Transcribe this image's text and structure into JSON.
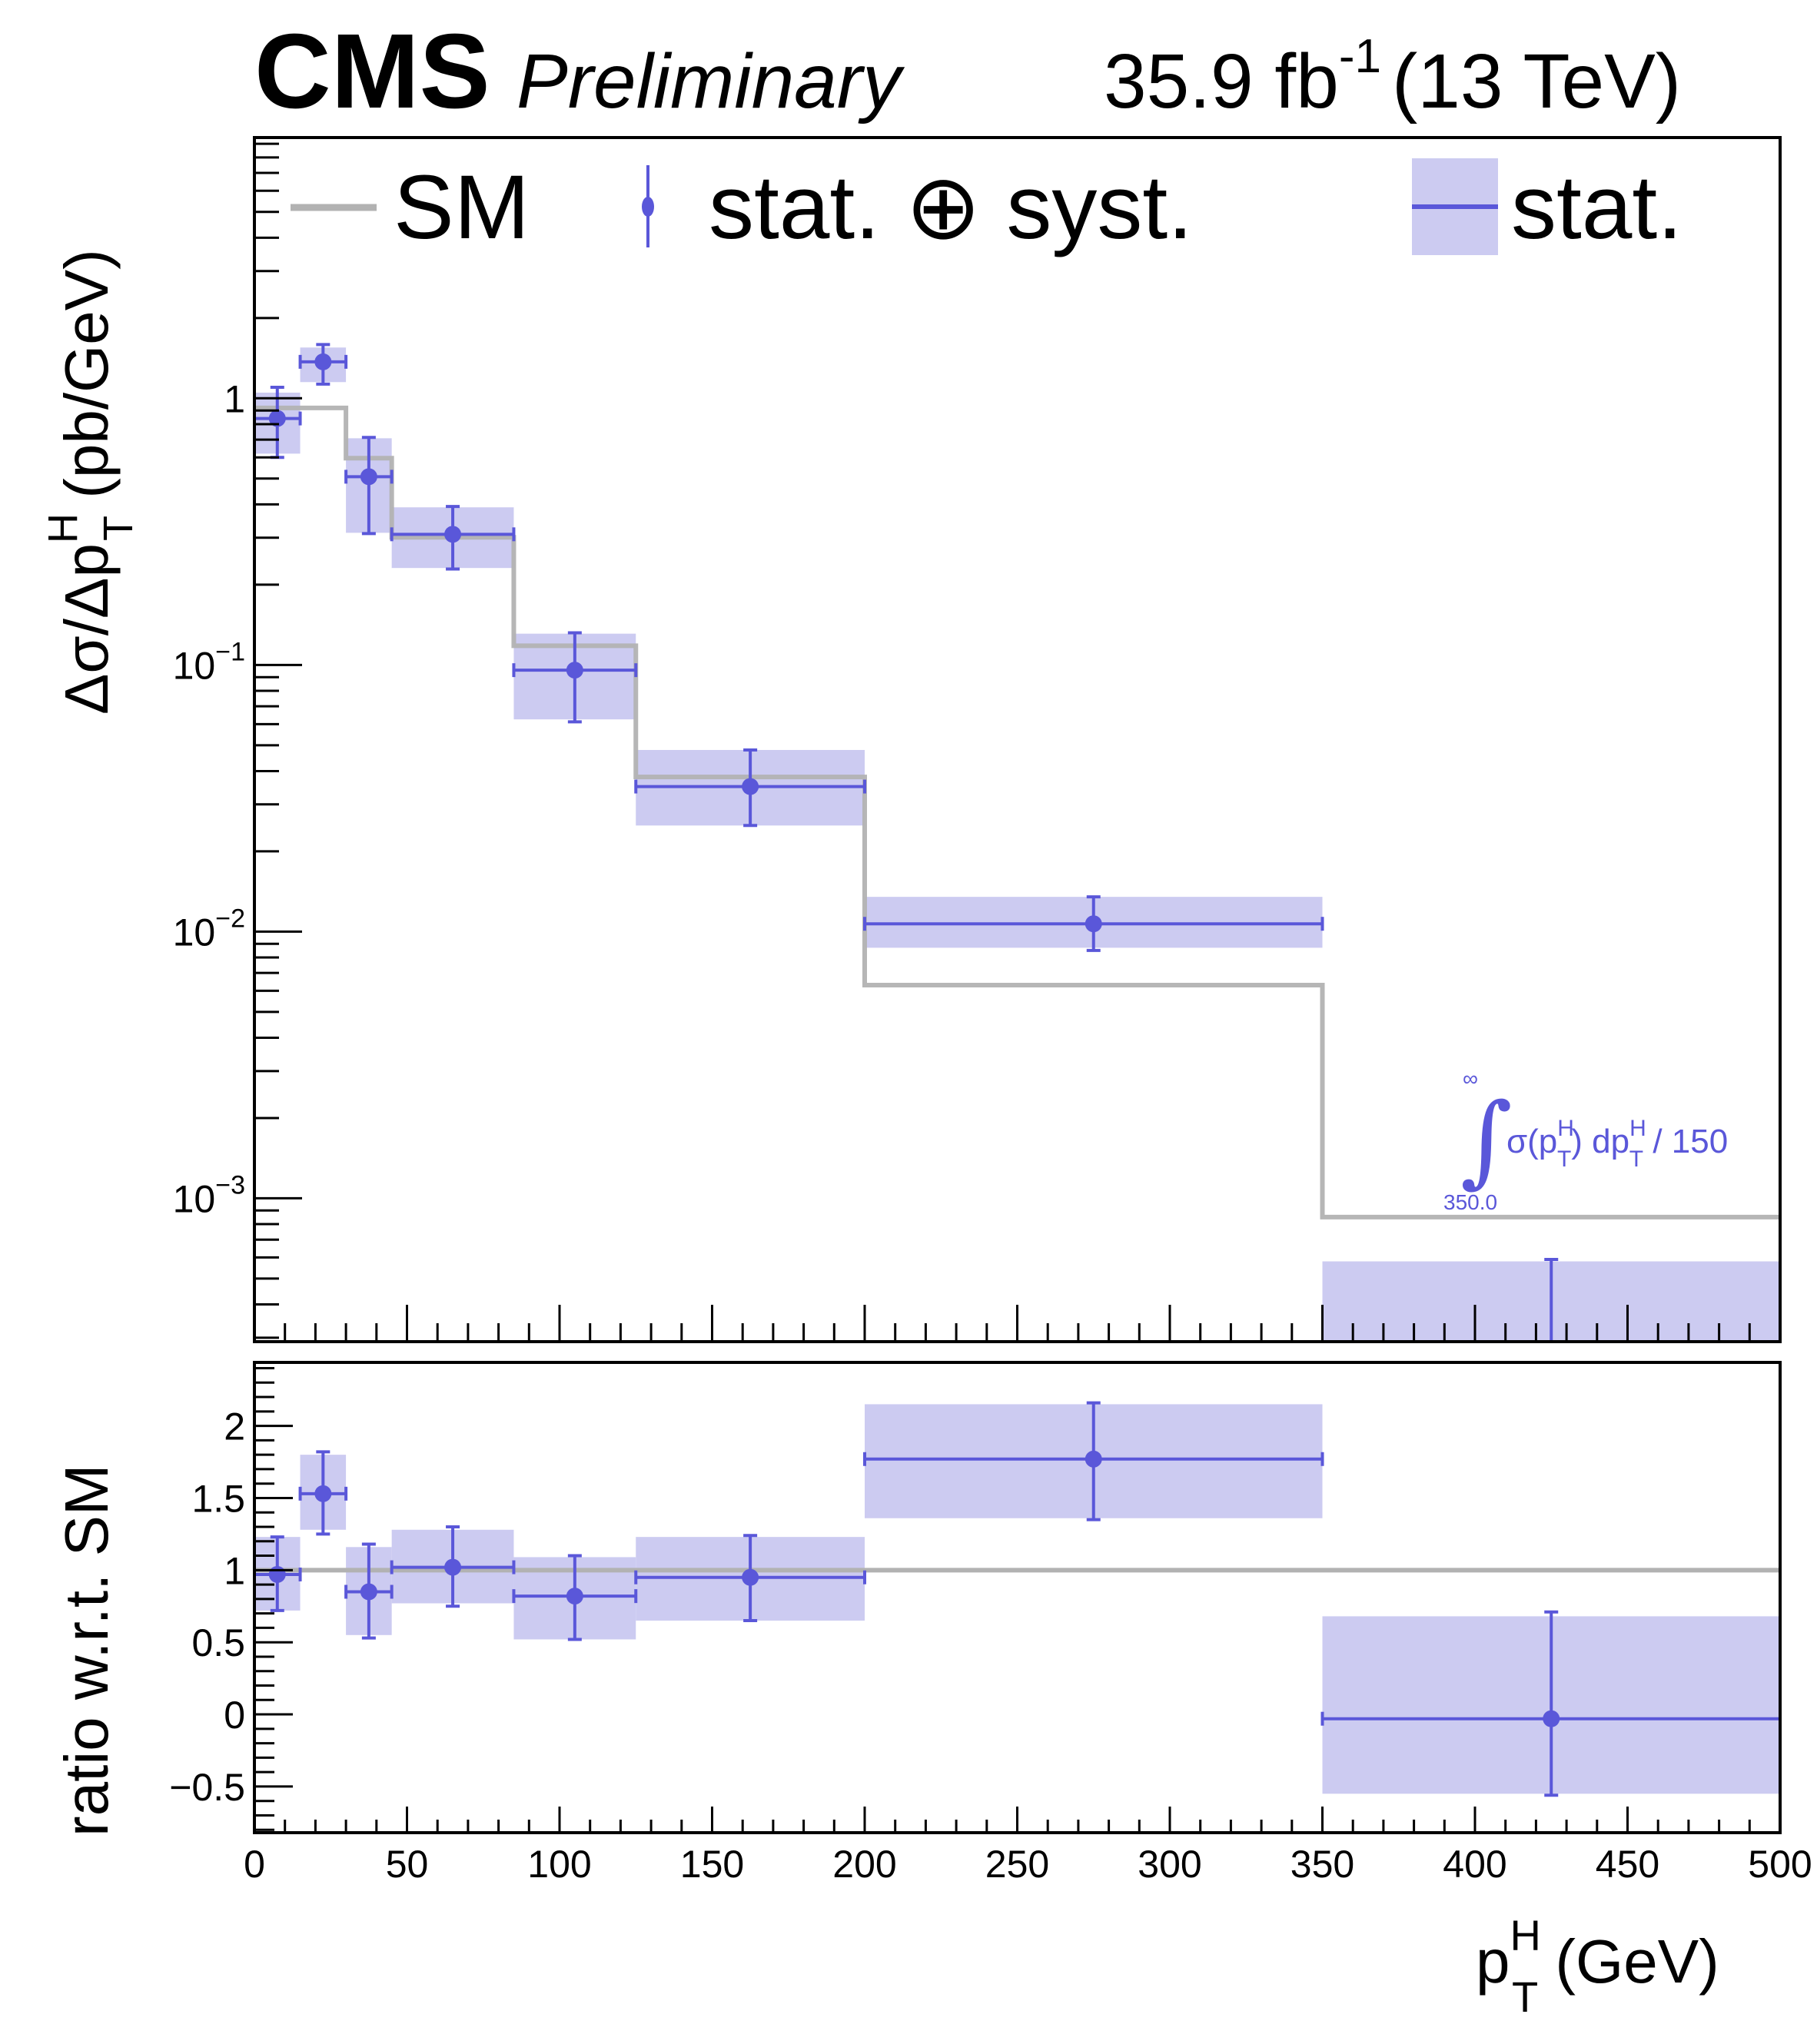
{
  "header": {
    "experiment": "CMS",
    "status": "Preliminary",
    "lumi_text": "35.9 fb",
    "lumi_exp": "-1",
    "energy_text": "(13 TeV)"
  },
  "legend": {
    "items": [
      {
        "label": "SM",
        "style": "line",
        "color": "#b2b2b2"
      },
      {
        "label": "stat. ⊕ syst.",
        "style": "marker-errorbar",
        "color": "#5a57d9"
      },
      {
        "label": "stat.",
        "style": "band-line",
        "color": "#cccbf1"
      }
    ]
  },
  "annotation": {
    "upper_limit": "∞",
    "integral": "∫",
    "lower_limit": "350.0",
    "expr_sigma": "σ(p",
    "expr_sup1": "H",
    "expr_sub1": "T",
    "expr_mid": ") dp",
    "expr_sup2": "H",
    "expr_sub2": "T",
    "expr_tail": " / 150"
  },
  "colors": {
    "data": "#5a57d9",
    "band": "#cccbf1",
    "sm": "#b2b2b2",
    "axis": "#000000"
  },
  "chart_data": [
    {
      "type": "bar",
      "panel": "main",
      "title": "CMS Preliminary 35.9 fb-1 (13 TeV)",
      "xlabel": "p_T^H (GeV)",
      "ylabel": "Δσ/Δp_T^H (pb/GeV)",
      "yscale": "log",
      "xlim": [
        0,
        500
      ],
      "ylim": [
        0.00029,
        9.5
      ],
      "x_ticks": [
        0,
        50,
        100,
        150,
        200,
        250,
        300,
        350,
        400,
        450,
        500
      ],
      "y_ticks": [
        {
          "value": 1,
          "label": "1",
          "exp": ""
        },
        {
          "value": 0.1,
          "label": "10",
          "exp": "−1"
        },
        {
          "value": 0.01,
          "label": "10",
          "exp": "−2"
        },
        {
          "value": 0.001,
          "label": "10",
          "exp": "−3"
        }
      ],
      "legend_position": "top",
      "bins": [
        0,
        15,
        30,
        45,
        85,
        125,
        200,
        350,
        500
      ],
      "series": [
        {
          "name": "SM",
          "style": "step",
          "values": [
            0.92,
            0.92,
            0.596,
            0.301,
            0.118,
            0.038,
            0.0063,
            0.00085
          ]
        },
        {
          "name": "stat. ⊕ syst.",
          "style": "points",
          "x": [
            7.5,
            22.5,
            37.5,
            65,
            105,
            162.5,
            275,
            425
          ],
          "values": [
            0.84,
            1.37,
            0.508,
            0.309,
            0.0956,
            0.035,
            0.0107,
            -2e-05
          ],
          "err_up": [
            1.1,
            1.59,
            0.713,
            0.393,
            0.132,
            0.048,
            0.0135,
            0.00059
          ],
          "err_down": [
            0.6,
            1.13,
            0.311,
            0.229,
            0.0612,
            0.025,
            0.0085,
            null
          ]
        },
        {
          "name": "stat.",
          "style": "band",
          "band_up": [
            1.05,
            1.55,
            0.708,
            0.39,
            0.131,
            0.048,
            0.0135,
            0.00058
          ],
          "band_down": [
            0.62,
            1.15,
            0.313,
            0.231,
            0.0625,
            0.025,
            0.0087,
            null
          ]
        }
      ],
      "annotation_text": "∫_{350.0}^{∞} σ(p_T^H) dp_T^H / 150"
    },
    {
      "type": "bar",
      "panel": "ratio",
      "xlabel": "p_T^H (GeV)",
      "ylabel": "ratio w.r.t. SM",
      "yscale": "linear",
      "xlim": [
        0,
        500
      ],
      "ylim": [
        -0.82,
        2.44
      ],
      "x_ticks": [
        0,
        50,
        100,
        150,
        200,
        250,
        300,
        350,
        400,
        450,
        500
      ],
      "y_ticks": [
        {
          "value": 2,
          "label": "2"
        },
        {
          "value": 1.5,
          "label": "1.5"
        },
        {
          "value": 1,
          "label": "1"
        },
        {
          "value": 0.5,
          "label": "0.5"
        },
        {
          "value": 0,
          "label": "0"
        },
        {
          "value": -0.5,
          "label": "−0.5"
        }
      ],
      "bins": [
        0,
        15,
        30,
        45,
        85,
        125,
        200,
        350,
        500
      ],
      "series": [
        {
          "name": "SM",
          "style": "line",
          "values": [
            1,
            1,
            1,
            1,
            1,
            1,
            1,
            1
          ]
        },
        {
          "name": "stat. ⊕ syst.",
          "style": "points",
          "x": [
            7.5,
            22.5,
            37.5,
            65,
            105,
            162.5,
            275,
            425
          ],
          "values": [
            0.97,
            1.53,
            0.85,
            1.02,
            0.82,
            0.95,
            1.77,
            -0.03
          ],
          "err_up": [
            1.23,
            1.82,
            1.18,
            1.3,
            1.1,
            1.24,
            2.16,
            0.71
          ],
          "err_down": [
            0.72,
            1.25,
            0.53,
            0.75,
            0.52,
            0.65,
            1.35,
            -0.56
          ]
        },
        {
          "name": "stat.",
          "style": "band",
          "band_up": [
            1.23,
            1.8,
            1.16,
            1.28,
            1.09,
            1.23,
            2.15,
            0.68
          ],
          "band_down": [
            0.72,
            1.28,
            0.55,
            0.77,
            0.52,
            0.65,
            1.36,
            -0.55
          ]
        }
      ]
    }
  ],
  "axis_labels": {
    "main_y_delta": "Δσ/Δp",
    "main_y_sup": "H",
    "main_y_sub": "T",
    "main_y_units": " (pb/GeV)",
    "ratio_y": "ratio w.r.t. SM",
    "x_p": "p",
    "x_sup": "H",
    "x_sub": "T",
    "x_units": " (GeV)"
  }
}
